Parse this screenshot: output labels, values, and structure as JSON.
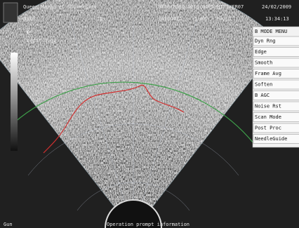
{
  "header": {
    "institution": "Queen Margaret University",
    "settings": "B070/MG60/AP10/BIP5/MIP5/FR07",
    "date": "24/02/2009",
    "name_label": "Name:",
    "id_label": "ID:",
    "probe": "6SEC10EA",
    "frequency": "5.0M",
    "preset": "Fluid",
    "time": "13:34:13"
  },
  "image": {
    "depth": "Depth 0.62"
  },
  "menu": {
    "title": "B MODE MENU",
    "items": [
      "Dyn Rng",
      "Edge",
      "Smooth",
      "Frame Avg",
      "Soften",
      "B AGC",
      "Noise Rst",
      "Scan Mode",
      "Post Proc",
      "NeedleGuide"
    ]
  },
  "footer": {
    "left": "Gun",
    "prompt": "Operation prompt information"
  }
}
